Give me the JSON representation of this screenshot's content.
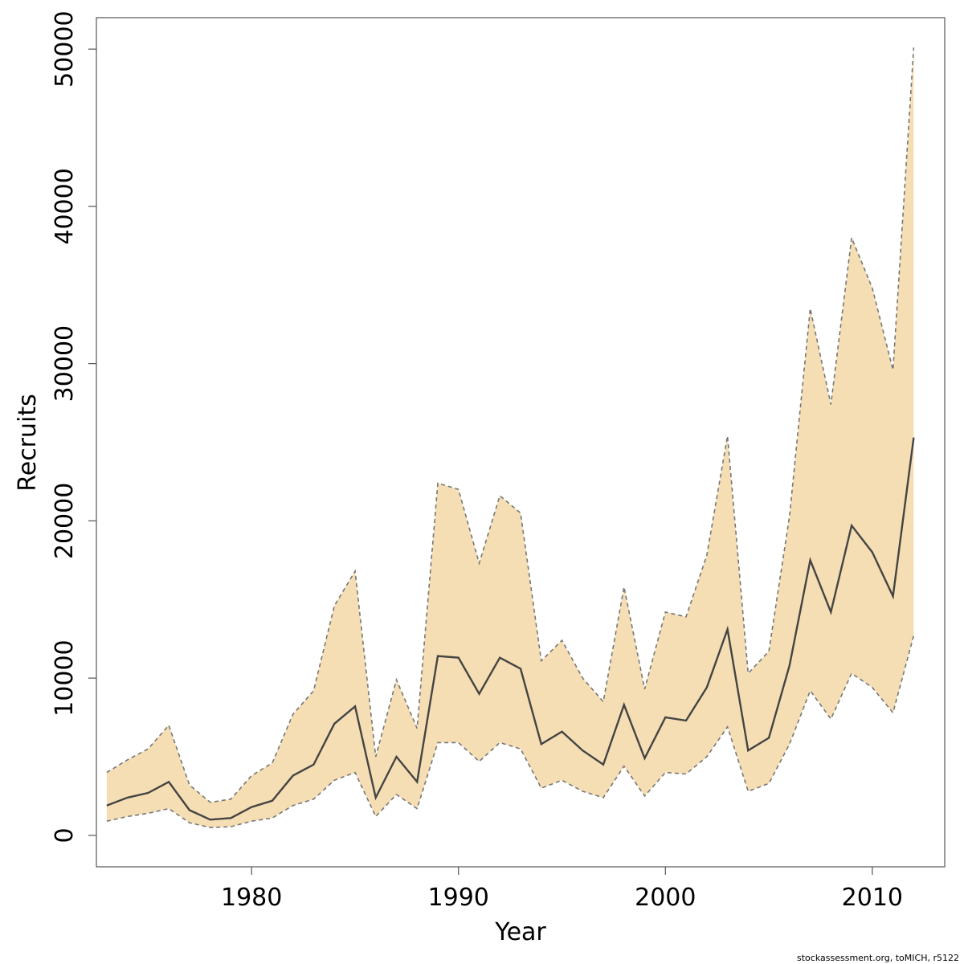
{
  "chart_data": {
    "type": "area",
    "xlabel": "Year",
    "ylabel": "Recruits",
    "credit": "stockassessment.org, toMICH, r5122",
    "xlim": [
      1972.5,
      2013.5
    ],
    "ylim": [
      -2000,
      52000
    ],
    "x_ticks": [
      1980,
      1990,
      2000,
      2010
    ],
    "y_ticks": [
      0,
      10000,
      20000,
      30000,
      40000,
      50000
    ],
    "band_color": "#f5deb3",
    "line_color": "#444444",
    "bound_color": "#777777",
    "grid": false,
    "x": [
      1973,
      1974,
      1975,
      1976,
      1977,
      1978,
      1979,
      1980,
      1981,
      1982,
      1983,
      1984,
      1985,
      1986,
      1987,
      1988,
      1989,
      1990,
      1991,
      1992,
      1993,
      1994,
      1995,
      1996,
      1997,
      1998,
      1999,
      2000,
      2001,
      2002,
      2003,
      2004,
      2005,
      2006,
      2007,
      2008,
      2009,
      2010,
      2011,
      2012
    ],
    "series": [
      {
        "role": "estimate",
        "values": [
          1900,
          2400,
          2700,
          3400,
          1600,
          1000,
          1100,
          1800,
          2200,
          3800,
          4500,
          7100,
          8200,
          2400,
          5000,
          3400,
          11400,
          11300,
          9000,
          11300,
          10600,
          5800,
          6600,
          5400,
          4500,
          8300,
          4900,
          7500,
          7300,
          9400,
          13100,
          5400,
          6200,
          10800,
          17500,
          14200,
          19700,
          18000,
          15200,
          25300
        ]
      },
      {
        "role": "upper",
        "values": [
          4000,
          4800,
          5500,
          7000,
          3200,
          2100,
          2300,
          3800,
          4600,
          7700,
          9200,
          14600,
          16800,
          5000,
          9900,
          6800,
          22400,
          22000,
          17300,
          21600,
          20500,
          11100,
          12400,
          10000,
          8500,
          15800,
          9300,
          14200,
          13900,
          17800,
          25400,
          10300,
          11700,
          20300,
          33500,
          27400,
          38000,
          34800,
          29600,
          50100
        ]
      },
      {
        "role": "lower",
        "values": [
          900,
          1200,
          1400,
          1700,
          800,
          500,
          550,
          900,
          1100,
          1900,
          2300,
          3500,
          4000,
          1200,
          2600,
          1700,
          5900,
          5900,
          4700,
          5900,
          5500,
          3000,
          3500,
          2800,
          2400,
          4400,
          2500,
          4000,
          3900,
          5000,
          6900,
          2800,
          3300,
          5800,
          9200,
          7400,
          10300,
          9400,
          7800,
          12700
        ]
      }
    ]
  }
}
